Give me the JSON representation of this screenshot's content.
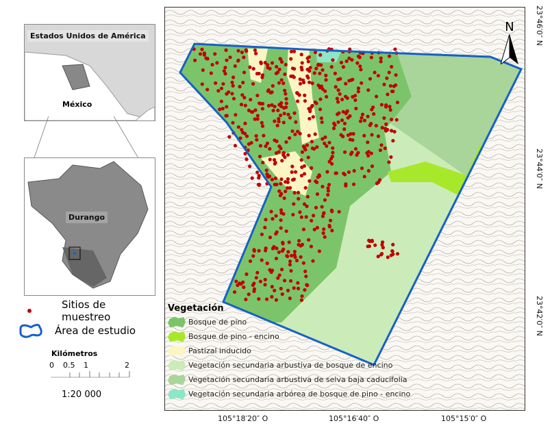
{
  "inset_top": {
    "label_usa": "Estados Unidos de América",
    "label_mexico": "México"
  },
  "inset_durango": {
    "label": "Durango"
  },
  "legend": {
    "points_label": "Sitios de muestreo",
    "points_color": "#c00000",
    "area_label": "Área de estudio",
    "area_color": "#1560c8",
    "scale_title": "Kilómetros",
    "scale_ticks": [
      "0",
      "0.5",
      "1",
      "2"
    ],
    "scale_ratio": "1:20 000"
  },
  "vegetation": {
    "title": "Vegetación",
    "items": [
      {
        "label": "Bosque de pino",
        "color": "#7cc46a"
      },
      {
        "label": "Bosque de pino - encino",
        "color": "#a8e82a"
      },
      {
        "label": "Pastizal inducido",
        "color": "#fbf5c4"
      },
      {
        "label": "Vegetación secundaria arbustiva de bosque de encino",
        "color": "#cbebb8"
      },
      {
        "label": "Vegetación secundaria arbustiva de selva baja caducifolia",
        "color": "#a9d49a"
      },
      {
        "label": "Vegetación secundaria arbórea de bosque de pino - encino",
        "color": "#8de6c6"
      }
    ]
  },
  "north_arrow": "N",
  "axes": {
    "lon": [
      "105°18′20″ O",
      "105°16′40″ O",
      "105°15′0″ O"
    ],
    "lat": [
      "23°46′0″ N",
      "23°44′0″ N",
      "23°42′0″ N"
    ]
  }
}
